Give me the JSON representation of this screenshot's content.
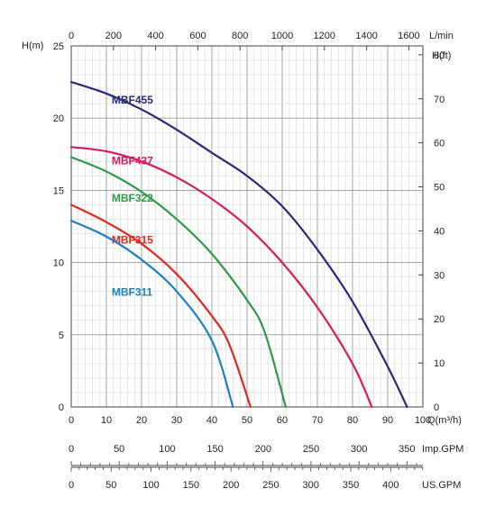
{
  "chart_data": {
    "type": "line",
    "axes": {
      "left": {
        "label": "H(m)",
        "ticks": [
          "0",
          "5",
          "10",
          "15",
          "20",
          "25"
        ],
        "range": [
          0,
          25
        ]
      },
      "right": {
        "label": "H(ft)",
        "ticks": [
          "0",
          "10",
          "20",
          "30",
          "40",
          "50",
          "60",
          "70",
          "80"
        ],
        "range": [
          0,
          82.02
        ]
      },
      "bottom": {
        "label": "Q(m³/h)",
        "ticks": [
          "0",
          "10",
          "20",
          "30",
          "40",
          "50",
          "60",
          "70",
          "80",
          "90",
          "100"
        ],
        "range": [
          0,
          100
        ]
      },
      "top": {
        "label": "L/min",
        "ticks": [
          "0",
          "200",
          "400",
          "600",
          "800",
          "1000",
          "1200",
          "1400",
          "1600"
        ],
        "range": [
          0,
          1666.7
        ]
      }
    },
    "extra_scales": [
      {
        "label": "Imp.GPM",
        "ticks": [
          "0",
          "50",
          "100",
          "150",
          "200",
          "250",
          "300",
          "350"
        ],
        "units_per_m3h": 3.666
      },
      {
        "label": "US.GPM",
        "ticks": [
          "0",
          "50",
          "100",
          "150",
          "200",
          "250",
          "300",
          "350",
          "400"
        ],
        "units_per_m3h": 4.403
      }
    ],
    "grid": true,
    "series": [
      {
        "name": "MBF455",
        "color": "#2a2a7a",
        "points": [
          [
            0,
            22.5
          ],
          [
            10,
            21.7
          ],
          [
            20,
            20.6
          ],
          [
            30,
            19.2
          ],
          [
            40,
            17.6
          ],
          [
            50,
            16.0
          ],
          [
            60,
            13.9
          ],
          [
            70,
            10.9
          ],
          [
            80,
            7.3
          ],
          [
            90,
            2.8
          ],
          [
            95.5,
            0
          ]
        ]
      },
      {
        "name": "MBF437",
        "color": "#d81b60",
        "points": [
          [
            0,
            18.0
          ],
          [
            10,
            17.7
          ],
          [
            20,
            17.0
          ],
          [
            30,
            15.9
          ],
          [
            40,
            14.4
          ],
          [
            50,
            12.5
          ],
          [
            60,
            10.0
          ],
          [
            70,
            6.9
          ],
          [
            80,
            3.0
          ],
          [
            85.5,
            0
          ]
        ]
      },
      {
        "name": "MBF322",
        "color": "#2e9a47",
        "points": [
          [
            0,
            17.3
          ],
          [
            10,
            16.3
          ],
          [
            20,
            14.9
          ],
          [
            30,
            13.0
          ],
          [
            40,
            10.6
          ],
          [
            50,
            7.4
          ],
          [
            55,
            5.2
          ],
          [
            61,
            0
          ]
        ]
      },
      {
        "name": "MBF315",
        "color": "#e0281c",
        "points": [
          [
            0,
            14.0
          ],
          [
            10,
            12.8
          ],
          [
            20,
            11.3
          ],
          [
            30,
            9.2
          ],
          [
            40,
            6.3
          ],
          [
            45,
            4.3
          ],
          [
            51,
            0
          ]
        ]
      },
      {
        "name": "MBF311",
        "color": "#1f7fbf",
        "points": [
          [
            0,
            12.9
          ],
          [
            10,
            11.8
          ],
          [
            20,
            10.2
          ],
          [
            30,
            8.0
          ],
          [
            40,
            4.6
          ],
          [
            46,
            0
          ]
        ]
      }
    ]
  }
}
